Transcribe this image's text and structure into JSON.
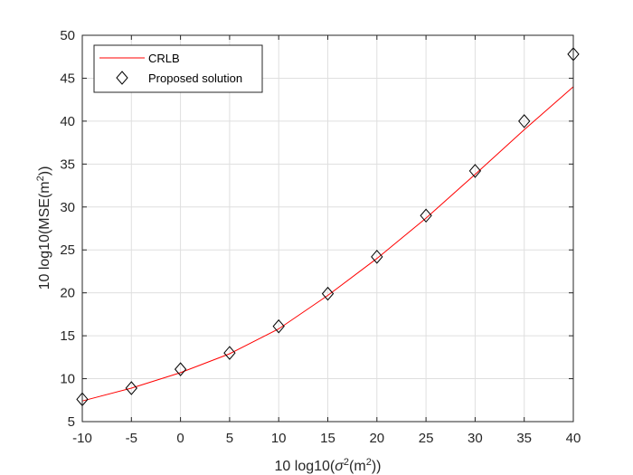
{
  "chart_data": {
    "type": "line",
    "title": "",
    "xlabel": "10 log10(σ²(m²))",
    "ylabel": "10 log10(MSE(m²))",
    "xlabel_parts": {
      "pre": "10 log10(",
      "sigma": "σ",
      "sup1": "2",
      "mid": "(m",
      "sup2": "2",
      "post": "))"
    },
    "ylabel_parts": {
      "pre": "10 log10(MSE(m",
      "sup": "2",
      "post": "))"
    },
    "xlim": [
      -10,
      40
    ],
    "ylim": [
      5,
      50
    ],
    "xticks": [
      -10,
      -5,
      0,
      5,
      10,
      15,
      20,
      25,
      30,
      35,
      40
    ],
    "yticks": [
      5,
      10,
      15,
      20,
      25,
      30,
      35,
      40,
      45,
      50
    ],
    "grid": true,
    "legend_position": "top-left",
    "x": [
      -10,
      -5,
      0,
      5,
      10,
      15,
      20,
      25,
      30,
      35,
      40
    ],
    "series": [
      {
        "name": "CRLB",
        "style": "line",
        "color": "#ff0000",
        "values": [
          7.4,
          8.9,
          10.7,
          12.9,
          15.8,
          19.7,
          24.0,
          28.7,
          33.8,
          39.0,
          44.0
        ]
      },
      {
        "name": "Proposed solution",
        "style": "diamond-marker",
        "color": "#000000",
        "values": [
          7.6,
          8.9,
          11.1,
          13.0,
          16.1,
          19.9,
          24.2,
          29.0,
          34.2,
          40.0,
          47.8
        ]
      }
    ]
  }
}
